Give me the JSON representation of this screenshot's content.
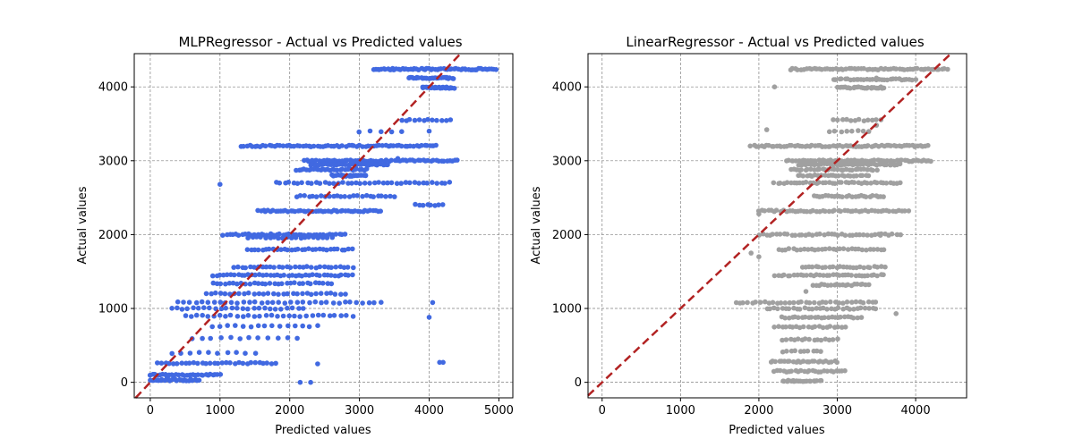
{
  "figure": {
    "background": "#ffffff"
  },
  "chart_data": [
    {
      "type": "scatter",
      "title": "MLPRegressor - Actual vs Predicted values",
      "xlabel": "Predicted values",
      "ylabel": "Actual values",
      "xlim": [
        -230,
        5200
      ],
      "ylim": [
        -210,
        4450
      ],
      "xticks": [
        0,
        1000,
        2000,
        3000,
        4000,
        5000
      ],
      "yticks": [
        0,
        1000,
        2000,
        3000,
        4000
      ],
      "grid": true,
      "point_color": "#4169e1",
      "reference_line": {
        "type": "y=x",
        "color": "#b22222",
        "style": "dashed"
      },
      "levels": [
        {
          "y": 4240,
          "x": [
            3200,
            4950
          ],
          "n": 60
        },
        {
          "y": 4120,
          "x": [
            3700,
            4350
          ],
          "n": 30
        },
        {
          "y": 3990,
          "x": [
            3900,
            4350
          ],
          "n": 30
        },
        {
          "y": 3550,
          "x": [
            3600,
            4300
          ],
          "n": 12
        },
        {
          "y": 3400,
          "x": [
            3000,
            3600
          ],
          "n": 5
        },
        {
          "y": 3200,
          "x": [
            1300,
            4100
          ],
          "n": 70
        },
        {
          "y": 3000,
          "x": [
            2200,
            4400
          ],
          "n": 60
        },
        {
          "y": 2950,
          "x": [
            2300,
            3400
          ],
          "n": 40
        },
        {
          "y": 2880,
          "x": [
            2100,
            3100
          ],
          "n": 30
        },
        {
          "y": 2800,
          "x": [
            2600,
            3100
          ],
          "n": 25
        },
        {
          "y": 2700,
          "x": [
            1800,
            4300
          ],
          "n": 40
        },
        {
          "y": 2520,
          "x": [
            2100,
            3500
          ],
          "n": 25
        },
        {
          "y": 2400,
          "x": [
            3800,
            4200
          ],
          "n": 8
        },
        {
          "y": 2320,
          "x": [
            1550,
            3300
          ],
          "n": 50
        },
        {
          "y": 2000,
          "x": [
            1050,
            2800
          ],
          "n": 40
        },
        {
          "y": 1960,
          "x": [
            1400,
            2600
          ],
          "n": 20
        },
        {
          "y": 1800,
          "x": [
            1400,
            2900
          ],
          "n": 30
        },
        {
          "y": 1560,
          "x": [
            1200,
            2900
          ],
          "n": 30
        },
        {
          "y": 1450,
          "x": [
            900,
            2900
          ],
          "n": 40
        },
        {
          "y": 1340,
          "x": [
            900,
            2600
          ],
          "n": 30
        },
        {
          "y": 1200,
          "x": [
            800,
            2800
          ],
          "n": 30
        },
        {
          "y": 1080,
          "x": [
            400,
            3300
          ],
          "n": 35
        },
        {
          "y": 1000,
          "x": [
            300,
            2200
          ],
          "n": 25
        },
        {
          "y": 900,
          "x": [
            500,
            2900
          ],
          "n": 30
        },
        {
          "y": 760,
          "x": [
            900,
            2400
          ],
          "n": 15
        },
        {
          "y": 600,
          "x": [
            600,
            2100
          ],
          "n": 12
        },
        {
          "y": 400,
          "x": [
            300,
            1500
          ],
          "n": 10
        },
        {
          "y": 260,
          "x": [
            100,
            1800
          ],
          "n": 30
        },
        {
          "y": 100,
          "x": [
            0,
            1000
          ],
          "n": 30
        },
        {
          "y": 30,
          "x": [
            0,
            700
          ],
          "n": 25
        }
      ],
      "extra_points": [
        [
          2300,
          0
        ],
        [
          2150,
          0
        ],
        [
          4150,
          270
        ],
        [
          4200,
          270
        ],
        [
          2400,
          250
        ],
        [
          1000,
          2680
        ],
        [
          4000,
          880
        ],
        [
          4050,
          1080
        ],
        [
          3550,
          3030
        ],
        [
          4000,
          3400
        ]
      ]
    },
    {
      "type": "scatter",
      "title": "LinearRegressor - Actual vs Predicted values",
      "xlabel": "Predicted values",
      "ylabel": "Actual values",
      "xlim": [
        -180,
        4650
      ],
      "ylim": [
        -210,
        4450
      ],
      "xticks": [
        0,
        1000,
        2000,
        3000,
        4000
      ],
      "yticks": [
        0,
        1000,
        2000,
        3000,
        4000
      ],
      "grid": true,
      "point_color": "#a0a0a0",
      "reference_line": {
        "type": "y=x",
        "color": "#b22222",
        "style": "dashed"
      },
      "levels": [
        {
          "y": 4240,
          "x": [
            2400,
            4400
          ],
          "n": 60
        },
        {
          "y": 4100,
          "x": [
            2950,
            4000
          ],
          "n": 30
        },
        {
          "y": 3990,
          "x": [
            3000,
            3600
          ],
          "n": 25
        },
        {
          "y": 3550,
          "x": [
            2950,
            3550
          ],
          "n": 12
        },
        {
          "y": 3400,
          "x": [
            2900,
            3400
          ],
          "n": 8
        },
        {
          "y": 3200,
          "x": [
            1900,
            4150
          ],
          "n": 70
        },
        {
          "y": 3000,
          "x": [
            2350,
            4200
          ],
          "n": 60
        },
        {
          "y": 2950,
          "x": [
            2500,
            3800
          ],
          "n": 40
        },
        {
          "y": 2880,
          "x": [
            2400,
            3500
          ],
          "n": 30
        },
        {
          "y": 2800,
          "x": [
            2500,
            3400
          ],
          "n": 25
        },
        {
          "y": 2700,
          "x": [
            2200,
            3800
          ],
          "n": 40
        },
        {
          "y": 2520,
          "x": [
            2700,
            3600
          ],
          "n": 25
        },
        {
          "y": 2320,
          "x": [
            2000,
            3900
          ],
          "n": 50
        },
        {
          "y": 2000,
          "x": [
            2000,
            3800
          ],
          "n": 40
        },
        {
          "y": 1800,
          "x": [
            2250,
            3600
          ],
          "n": 30
        },
        {
          "y": 1560,
          "x": [
            2550,
            3600
          ],
          "n": 25
        },
        {
          "y": 1450,
          "x": [
            2200,
            3600
          ],
          "n": 35
        },
        {
          "y": 1320,
          "x": [
            2700,
            3400
          ],
          "n": 20
        },
        {
          "y": 1080,
          "x": [
            1700,
            3500
          ],
          "n": 35
        },
        {
          "y": 1000,
          "x": [
            2100,
            3500
          ],
          "n": 30
        },
        {
          "y": 880,
          "x": [
            2300,
            3300
          ],
          "n": 25
        },
        {
          "y": 750,
          "x": [
            2200,
            3100
          ],
          "n": 20
        },
        {
          "y": 580,
          "x": [
            2300,
            3000
          ],
          "n": 15
        },
        {
          "y": 420,
          "x": [
            2300,
            2800
          ],
          "n": 10
        },
        {
          "y": 280,
          "x": [
            2150,
            3000
          ],
          "n": 25
        },
        {
          "y": 150,
          "x": [
            2200,
            3100
          ],
          "n": 25
        },
        {
          "y": 20,
          "x": [
            2300,
            2800
          ],
          "n": 20
        }
      ],
      "extra_points": [
        [
          2000,
          2280
        ],
        [
          2000,
          1700
        ],
        [
          3500,
          4120
        ],
        [
          2100,
          3420
        ],
        [
          2200,
          4000
        ],
        [
          1900,
          1750
        ],
        [
          2600,
          1230
        ],
        [
          3550,
          1990
        ],
        [
          3500,
          3480
        ],
        [
          3750,
          930
        ]
      ]
    }
  ]
}
